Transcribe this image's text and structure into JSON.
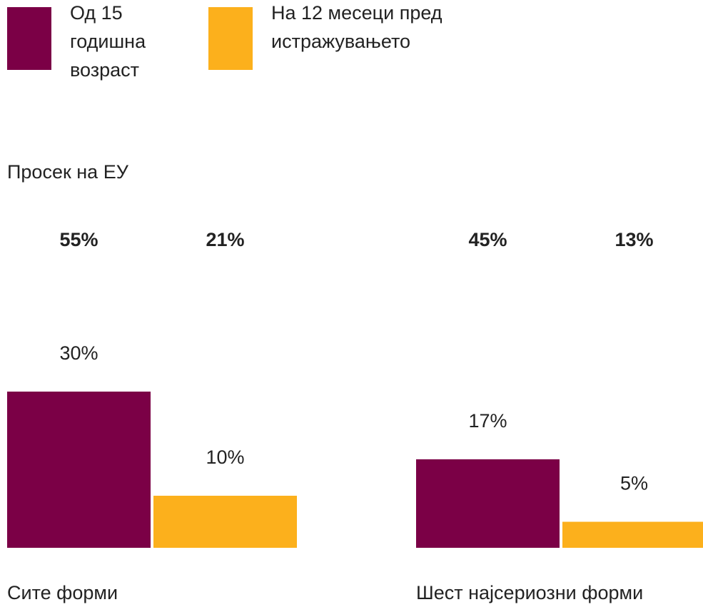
{
  "chart_data": {
    "type": "bar",
    "categories": [
      "Сите форми",
      "Шест најсериозни форми"
    ],
    "series": [
      {
        "name": "Од 15 годишна возраст",
        "color": "#7b0046",
        "values": [
          30,
          17
        ],
        "value_labels": [
          "30%",
          "17%"
        ]
      },
      {
        "name": "На 12 месеци пред истражувањето",
        "color": "#fcb01c",
        "values": [
          10,
          5
        ],
        "value_labels": [
          "10%",
          "5%"
        ]
      }
    ],
    "eu_average": {
      "label": "Просек на ЕУ",
      "series": [
        {
          "color": "#7b0046",
          "values": [
            55,
            45
          ],
          "value_labels": [
            "55%",
            "45%"
          ]
        },
        {
          "color": "#e08a1e",
          "values": [
            21,
            13
          ],
          "value_labels": [
            "21%",
            "13%"
          ]
        }
      ]
    }
  }
}
